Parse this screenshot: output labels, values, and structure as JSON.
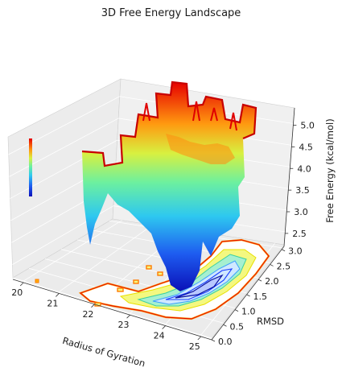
{
  "chart_data": {
    "type": "surface3d",
    "title": "3D Free Energy Landscape",
    "xlabel": "Radius of Gyration",
    "ylabel": "RMSD",
    "zlabel": "Free Energy (kcal/mol)",
    "xlim": [
      19.7,
      25.3
    ],
    "ylim": [
      0.0,
      3.1
    ],
    "zlim": [
      2.2,
      5.4
    ],
    "xticks": [
      "20",
      "21",
      "22",
      "23",
      "24",
      "25"
    ],
    "yticks": [
      "0.0",
      "0.5",
      "1.0",
      "1.5",
      "2.0",
      "2.5",
      "3.0"
    ],
    "zticks": [
      "2.5",
      "3.0",
      "3.5",
      "4.0",
      "4.5",
      "5.0"
    ],
    "colormap": "jet",
    "grid": true,
    "contour_projection": "floor",
    "basin_minimum": {
      "x": 23.9,
      "y": 0.6,
      "z": 2.3
    },
    "surface": {
      "x": [
        21.3,
        21.9,
        22.5,
        23.1,
        23.7,
        24.3,
        24.9
      ],
      "y": [
        0.3,
        0.8,
        1.3,
        1.8,
        2.3,
        2.8,
        3.1
      ],
      "z": [
        [
          4.1,
          4.3,
          4.5,
          4.7,
          5.0,
          5.1,
          5.3
        ],
        [
          3.9,
          4.0,
          3.8,
          4.2,
          4.5,
          4.9,
          5.2
        ],
        [
          3.6,
          3.4,
          3.2,
          3.5,
          4.1,
          4.6,
          5.0
        ],
        [
          3.2,
          2.9,
          2.6,
          2.9,
          3.6,
          4.3,
          4.8
        ],
        [
          2.9,
          2.6,
          2.4,
          2.6,
          3.2,
          4.0,
          4.6
        ],
        [
          2.8,
          2.5,
          2.3,
          2.5,
          3.0,
          3.8,
          4.5
        ],
        [
          3.0,
          2.7,
          2.5,
          2.7,
          3.1,
          3.9,
          4.6
        ]
      ]
    }
  }
}
